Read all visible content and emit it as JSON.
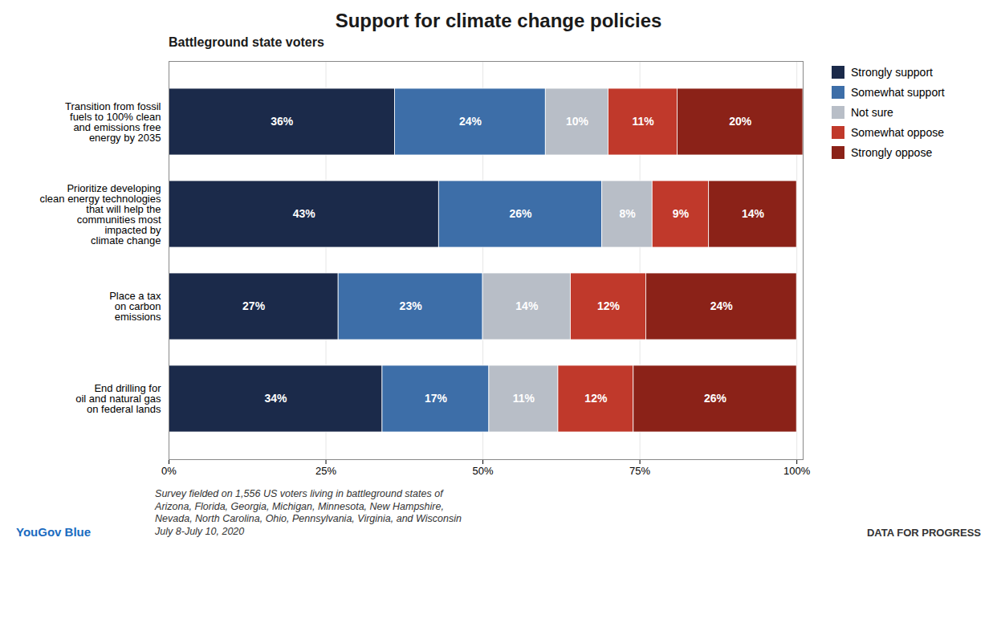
{
  "chart_data": {
    "type": "bar",
    "orientation": "horizontal",
    "stacked": true,
    "title": "Support for climate change policies",
    "subtitle": "Battleground state voters",
    "categories": [
      "Transition from fossil\nfuels to 100% clean\nand emissions free\nenergy by 2035",
      "Prioritize developing\nclean energy technologies\nthat will help the\ncommunities most\nimpacted by\nclimate change",
      "Place a tax\non carbon\nemissions",
      "End drilling for\noil and natural gas\non federal lands"
    ],
    "series": [
      {
        "name": "Strongly support",
        "color": "#1b2a4a",
        "values": [
          36,
          43,
          27,
          34
        ],
        "value_labels": [
          "36%",
          "43%",
          "27%",
          "34%"
        ]
      },
      {
        "name": "Somewhat support",
        "color": "#3d6ea8",
        "values": [
          24,
          26,
          23,
          17
        ],
        "value_labels": [
          "24%",
          "26%",
          "23%",
          "17%"
        ]
      },
      {
        "name": "Not sure",
        "color": "#b8bec7",
        "values": [
          10,
          8,
          14,
          11
        ],
        "value_labels": [
          "10%",
          "8%",
          "14%",
          "11%"
        ]
      },
      {
        "name": "Somewhat oppose",
        "color": "#c0392b",
        "values": [
          11,
          9,
          12,
          12
        ],
        "value_labels": [
          "11%",
          "9%",
          "12%",
          "12%"
        ]
      },
      {
        "name": "Strongly oppose",
        "color": "#8b2218",
        "values": [
          20,
          14,
          24,
          26
        ],
        "value_labels": [
          "20%",
          "14%",
          "24%",
          "26%"
        ]
      }
    ],
    "xlim": [
      0,
      101
    ],
    "xticks": [
      {
        "value": 0,
        "label": "0%"
      },
      {
        "value": 25,
        "label": "25%"
      },
      {
        "value": 50,
        "label": "50%"
      },
      {
        "value": 75,
        "label": "75%"
      },
      {
        "value": 100,
        "label": "100%"
      }
    ],
    "grid": true,
    "legend": "right",
    "data_labels": true,
    "annotations": [
      "Survey fielded on 1,556 US voters living in battleground states of\nArizona, Florida, Georgia, Michigan, Minnesota, New Hampshire,\nNevada, North Carolina, Ohio, Pennsylvania, Virginia, and Wisconsin\nJuly 8-July 10, 2020",
      "YouGov Blue",
      "DATA FOR PROGRESS"
    ]
  }
}
